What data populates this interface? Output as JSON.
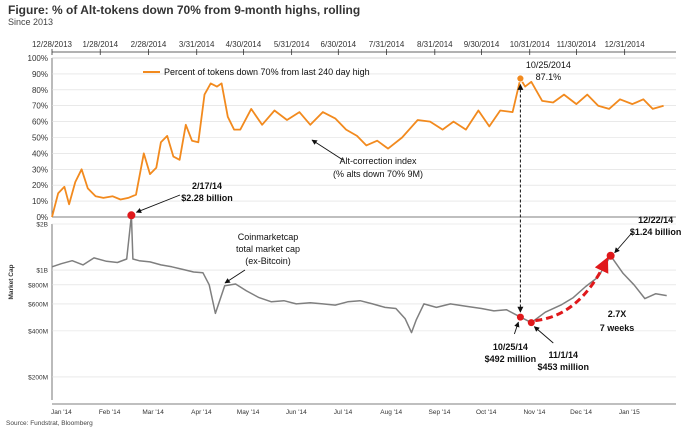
{
  "figure": {
    "title": "Figure: % of Alt-tokens down 70% from 9-month highs, rolling",
    "subtitle": "Since 2013",
    "source": "Source: Fundstrat, Bloomberg"
  },
  "colors": {
    "orange": "#f28a1e",
    "gray": "#7f7f7f",
    "red": "#e0181b",
    "dark": "#333333"
  },
  "chart_data": [
    {
      "type": "line",
      "top_axis_dates": [
        "12/28/2013",
        "1/28/2014",
        "2/28/2014",
        "3/31/2014",
        "4/30/2014",
        "5/31/2014",
        "6/30/2014",
        "7/31/2014",
        "8/31/2014",
        "9/30/2014",
        "10/31/2014",
        "11/30/2014",
        "12/31/2014"
      ],
      "y_ticks": [
        "0%",
        "10%",
        "20%",
        "30%",
        "40%",
        "50%",
        "60%",
        "70%",
        "80%",
        "90%",
        "100%"
      ],
      "ylim": [
        0,
        100
      ],
      "legend": "Percent of tokens down 70% from last 240 day high",
      "series": [
        {
          "name": "Percent of tokens down 70% from last 240 day high",
          "x": [
            "2013-12-28",
            "2014-01-01",
            "2014-01-05",
            "2014-01-08",
            "2014-01-12",
            "2014-01-16",
            "2014-01-20",
            "2014-01-25",
            "2014-01-30",
            "2014-02-05",
            "2014-02-10",
            "2014-02-15",
            "2014-02-20",
            "2014-02-25",
            "2014-03-01",
            "2014-03-05",
            "2014-03-08",
            "2014-03-12",
            "2014-03-16",
            "2014-03-20",
            "2014-03-24",
            "2014-03-28",
            "2014-04-01",
            "2014-04-05",
            "2014-04-09",
            "2014-04-13",
            "2014-04-16",
            "2014-04-20",
            "2014-04-24",
            "2014-04-28",
            "2014-05-05",
            "2014-05-12",
            "2014-05-20",
            "2014-05-28",
            "2014-06-05",
            "2014-06-12",
            "2014-06-20",
            "2014-06-28",
            "2014-07-05",
            "2014-07-12",
            "2014-07-18",
            "2014-07-25",
            "2014-08-01",
            "2014-08-10",
            "2014-08-20",
            "2014-08-28",
            "2014-09-05",
            "2014-09-12",
            "2014-09-20",
            "2014-09-28",
            "2014-10-05",
            "2014-10-12",
            "2014-10-20",
            "2014-10-25",
            "2014-10-28",
            "2014-11-01",
            "2014-11-08",
            "2014-11-15",
            "2014-11-22",
            "2014-11-30",
            "2014-12-07",
            "2014-12-14",
            "2014-12-21",
            "2014-12-28",
            "2015-01-05",
            "2015-01-12",
            "2015-01-18",
            "2015-01-25"
          ],
          "values": [
            0,
            15,
            19,
            8,
            22,
            30,
            18,
            13,
            12,
            13,
            11,
            12,
            14,
            40,
            27,
            31,
            47,
            51,
            38,
            36,
            58,
            48,
            47,
            77,
            84,
            82,
            84,
            63,
            55,
            55,
            68,
            58,
            67,
            61,
            66,
            58,
            66,
            62,
            55,
            51,
            45,
            48,
            43,
            50,
            61,
            60,
            55,
            60,
            55,
            67,
            57,
            67,
            66,
            87,
            82,
            85,
            73,
            72,
            77,
            71,
            77,
            70,
            68,
            74,
            71,
            74,
            68,
            70
          ]
        }
      ],
      "annotations": [
        {
          "x": "2014-10-25",
          "date_label": "10/25/2014",
          "value_label": "87.1%"
        },
        {
          "label_line1": "Alt-correction index",
          "label_line2": "(% alts down 70% 9M)"
        }
      ]
    },
    {
      "type": "line",
      "ylabel": "Market Cap",
      "y_ticks": [
        "$200M",
        "$400M",
        "$600M",
        "$800M",
        "$1B",
        "$2B"
      ],
      "y_scale": "log",
      "ylim_millions": [
        150,
        2000
      ],
      "x_ticks": [
        "Jan '14",
        "Feb '14",
        "Mar '14",
        "Apr '14",
        "May '14",
        "Jun '14",
        "Jul '14",
        "Aug '14",
        "Sep '14",
        "Oct '14",
        "Nov '14",
        "Dec '14",
        "Jan '15"
      ],
      "series": [
        {
          "name": "Coinmarketcap total market cap (ex-Bitcoin)",
          "x": [
            "2013-12-28",
            "2014-01-03",
            "2014-01-10",
            "2014-01-17",
            "2014-01-24",
            "2014-02-01",
            "2014-02-08",
            "2014-02-14",
            "2014-02-17",
            "2014-02-18",
            "2014-02-22",
            "2014-03-01",
            "2014-03-08",
            "2014-03-15",
            "2014-03-22",
            "2014-03-29",
            "2014-04-04",
            "2014-04-08",
            "2014-04-12",
            "2014-04-18",
            "2014-04-25",
            "2014-05-02",
            "2014-05-10",
            "2014-05-18",
            "2014-05-26",
            "2014-06-03",
            "2014-06-12",
            "2014-06-20",
            "2014-06-28",
            "2014-07-06",
            "2014-07-14",
            "2014-07-22",
            "2014-07-30",
            "2014-08-06",
            "2014-08-12",
            "2014-08-16",
            "2014-08-19",
            "2014-08-24",
            "2014-09-01",
            "2014-09-10",
            "2014-09-20",
            "2014-09-30",
            "2014-10-08",
            "2014-10-16",
            "2014-10-25",
            "2014-11-01",
            "2014-11-10",
            "2014-11-20",
            "2014-11-28",
            "2014-12-06",
            "2014-12-14",
            "2014-12-22",
            "2014-12-30",
            "2015-01-06",
            "2015-01-13",
            "2015-01-20",
            "2015-01-27"
          ],
          "values": [
            1050,
            1100,
            1150,
            1080,
            1200,
            1140,
            1120,
            1180,
            2280,
            1180,
            1150,
            1130,
            1080,
            1050,
            1010,
            970,
            960,
            800,
            520,
            790,
            810,
            730,
            660,
            620,
            630,
            600,
            610,
            600,
            590,
            620,
            630,
            600,
            570,
            560,
            480,
            390,
            470,
            600,
            570,
            600,
            580,
            560,
            540,
            550,
            492,
            453,
            530,
            590,
            660,
            780,
            900,
            1240,
            950,
            800,
            650,
            700,
            680
          ]
        }
      ],
      "annotations": [
        {
          "x": "2014-02-17",
          "date_label": "2/17/14",
          "value_label": "$2.28 billion"
        },
        {
          "x": "2014-10-25",
          "date_label": "10/25/14",
          "value_label": "$492 million"
        },
        {
          "x": "2014-11-01",
          "date_label": "11/1/14",
          "value_label": "$453 million"
        },
        {
          "x": "2014-12-22",
          "date_label": "12/22/14",
          "value_label": "$1.24 billion"
        },
        {
          "label_line1": "Coinmarketcap",
          "label_line2": "total market cap",
          "label_line3": "(ex-Bitcoin)"
        },
        {
          "multiple": "2.7X",
          "period": "7 weeks"
        }
      ]
    }
  ]
}
